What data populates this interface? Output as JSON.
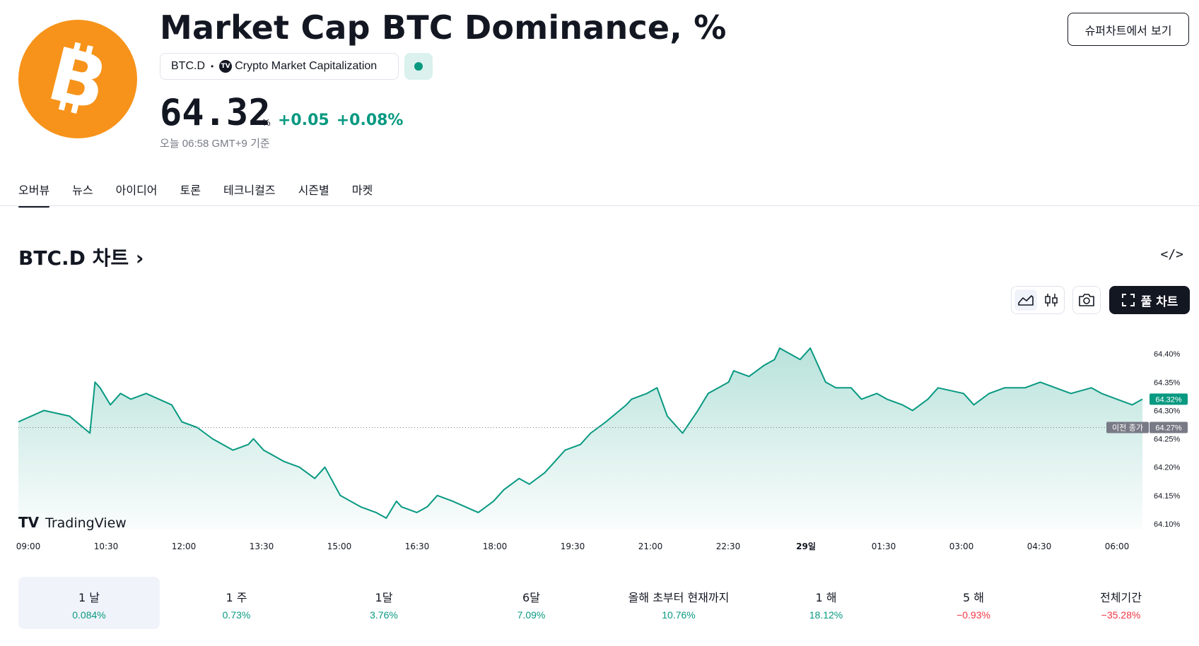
{
  "header": {
    "title": "Market Cap BTC Dominance, %",
    "symbol": "BTC.D",
    "exchange": "Crypto Market Capitalization",
    "exchange_logo_text": "TV",
    "price": "64.32",
    "unit": "%",
    "change_abs": "+0.05",
    "change_pct": "+0.08%",
    "as_of": "오늘 06:58 GMT+9 기준",
    "super_chart_button": "슈퍼차트에서 보기",
    "colors": {
      "logo": "#f7931a",
      "up": "#089981",
      "down": "#f23645"
    }
  },
  "tabs": [
    {
      "label": "오버뷰",
      "active": true
    },
    {
      "label": "뉴스"
    },
    {
      "label": "아이디어"
    },
    {
      "label": "토론"
    },
    {
      "label": "테크니컬즈"
    },
    {
      "label": "시즌별"
    },
    {
      "label": "마켓"
    }
  ],
  "chart_section": {
    "title": "BTC.D 차트",
    "full_chart_button": "풀 차트",
    "watermark": "TradingView",
    "prev_close_label": "이전 종가",
    "icons": [
      "embed-code-icon",
      "area-chart-icon",
      "candles-icon",
      "camera-icon",
      "fullscreen-icon"
    ]
  },
  "chart_data": {
    "type": "area",
    "title": "",
    "x_ticks": [
      "09:00",
      "10:30",
      "12:00",
      "13:30",
      "15:00",
      "16:30",
      "18:00",
      "19:30",
      "21:00",
      "22:30",
      "29일",
      "01:30",
      "03:00",
      "04:30",
      "06:00"
    ],
    "y_ticks": [
      "64.40%",
      "64.35%",
      "64.30%",
      "64.25%",
      "64.20%",
      "64.15%",
      "64.10%"
    ],
    "ylim": [
      64.09,
      64.445
    ],
    "xlim_hours": [
      0,
      22
    ],
    "last_value": 64.32,
    "last_label": "64.32%",
    "prev_close": 64.27,
    "prev_close_text": "64.27%",
    "series": [
      {
        "x": [
          0,
          0.5,
          1.0,
          1.4,
          1.5,
          1.6,
          1.8,
          2.0,
          2.2,
          2.5,
          3.0,
          3.2,
          3.5,
          3.8,
          4.0,
          4.2,
          4.5,
          4.6,
          4.8,
          5.0,
          5.2,
          5.5,
          5.8,
          6.0,
          6.3,
          6.7,
          7.0,
          7.2,
          7.4,
          7.5,
          7.8,
          8.0,
          8.2,
          8.5,
          9.0,
          9.3,
          9.5,
          9.8,
          10.0,
          10.3,
          10.5,
          10.7,
          11.0,
          11.2,
          11.5,
          11.9,
          12.0,
          12.3,
          12.5,
          12.7,
          13.0,
          13.3,
          13.5,
          13.7,
          13.9,
          14.0,
          14.3,
          14.6,
          14.8,
          14.9,
          15.3,
          15.5,
          15.8,
          16.0,
          16.3,
          16.5,
          16.8,
          17.0,
          17.3,
          17.5,
          17.8,
          18.0,
          18.5,
          18.7,
          19.0,
          19.3,
          19.7,
          20.0,
          20.3,
          20.6,
          21.0,
          21.2,
          21.5,
          21.8,
          22.0
        ],
        "values": [
          64.28,
          64.3,
          64.29,
          64.26,
          64.35,
          64.34,
          64.31,
          64.33,
          64.32,
          64.33,
          64.31,
          64.28,
          64.27,
          64.25,
          64.24,
          64.23,
          64.24,
          64.25,
          64.23,
          64.22,
          64.21,
          64.2,
          64.18,
          64.2,
          64.15,
          64.13,
          64.12,
          64.11,
          64.14,
          64.13,
          64.12,
          64.13,
          64.15,
          64.14,
          64.12,
          64.14,
          64.16,
          64.18,
          64.17,
          64.19,
          64.21,
          64.23,
          64.24,
          64.26,
          64.28,
          64.31,
          64.32,
          64.33,
          64.34,
          64.29,
          64.26,
          64.3,
          64.33,
          64.34,
          64.35,
          64.37,
          64.36,
          64.38,
          64.39,
          64.41,
          64.39,
          64.41,
          64.35,
          64.34,
          64.34,
          64.32,
          64.33,
          64.32,
          64.31,
          64.3,
          64.32,
          64.34,
          64.33,
          64.31,
          64.33,
          64.34,
          64.34,
          64.35,
          64.34,
          64.33,
          64.34,
          64.33,
          64.32,
          64.31,
          64.32
        ]
      }
    ]
  },
  "performance": [
    {
      "label": "1 날",
      "value": "0.084%",
      "dir": "pos",
      "active": true
    },
    {
      "label": "1 주",
      "value": "0.73%",
      "dir": "pos"
    },
    {
      "label": "1달",
      "value": "3.76%",
      "dir": "pos"
    },
    {
      "label": "6달",
      "value": "7.09%",
      "dir": "pos"
    },
    {
      "label": "올해 초부터 현재까지",
      "value": "10.76%",
      "dir": "pos"
    },
    {
      "label": "1 해",
      "value": "18.12%",
      "dir": "pos"
    },
    {
      "label": "5 해",
      "value": "−0.93%",
      "dir": "neg"
    },
    {
      "label": "전체기간",
      "value": "−35.28%",
      "dir": "neg"
    }
  ]
}
